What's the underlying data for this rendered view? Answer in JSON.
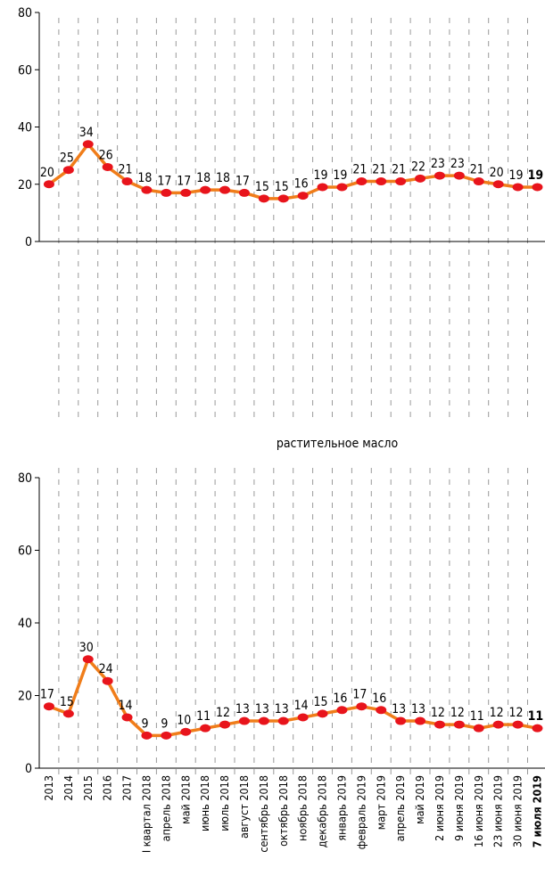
{
  "chart_data": [
    {
      "type": "line",
      "color": "#f07d1a",
      "marker_color": "#e8141c",
      "values": [
        20,
        25,
        34,
        26,
        21,
        18,
        17,
        17,
        18,
        18,
        17,
        15,
        15,
        16,
        19,
        19,
        21,
        21,
        21,
        22,
        23,
        23,
        21,
        20,
        19,
        19
      ],
      "ylim": [
        0,
        80
      ],
      "yticks": [
        0,
        20,
        40,
        60,
        80
      ]
    },
    {
      "type": "line",
      "title": "растительное масло",
      "color": "#f07d1a",
      "marker_color": "#e8141c",
      "categories": [
        "2013",
        "2014",
        "2015",
        "2016",
        "2017",
        "I квартал 2018",
        "апрель 2018",
        "май 2018",
        "июнь 2018",
        "июль 2018",
        "август 2018",
        "сентябрь 2018",
        "октябрь 2018",
        "ноябрь 2018",
        "декабрь 2018",
        "январь 2019",
        "февраль 2019",
        "март 2019",
        "апрель 2019",
        "май 2019",
        "2 июня 2019",
        "9 июня 2019",
        "16 июня 2019",
        "23 июня 2019",
        "30 июня 2019",
        "7 июля 2019"
      ],
      "values": [
        17,
        15,
        30,
        24,
        14,
        9,
        9,
        10,
        11,
        12,
        13,
        13,
        13,
        14,
        15,
        16,
        17,
        16,
        13,
        13,
        12,
        12,
        11,
        12,
        12,
        11
      ],
      "ylim": [
        0,
        80
      ],
      "yticks": [
        0,
        20,
        40,
        60,
        80
      ]
    }
  ]
}
